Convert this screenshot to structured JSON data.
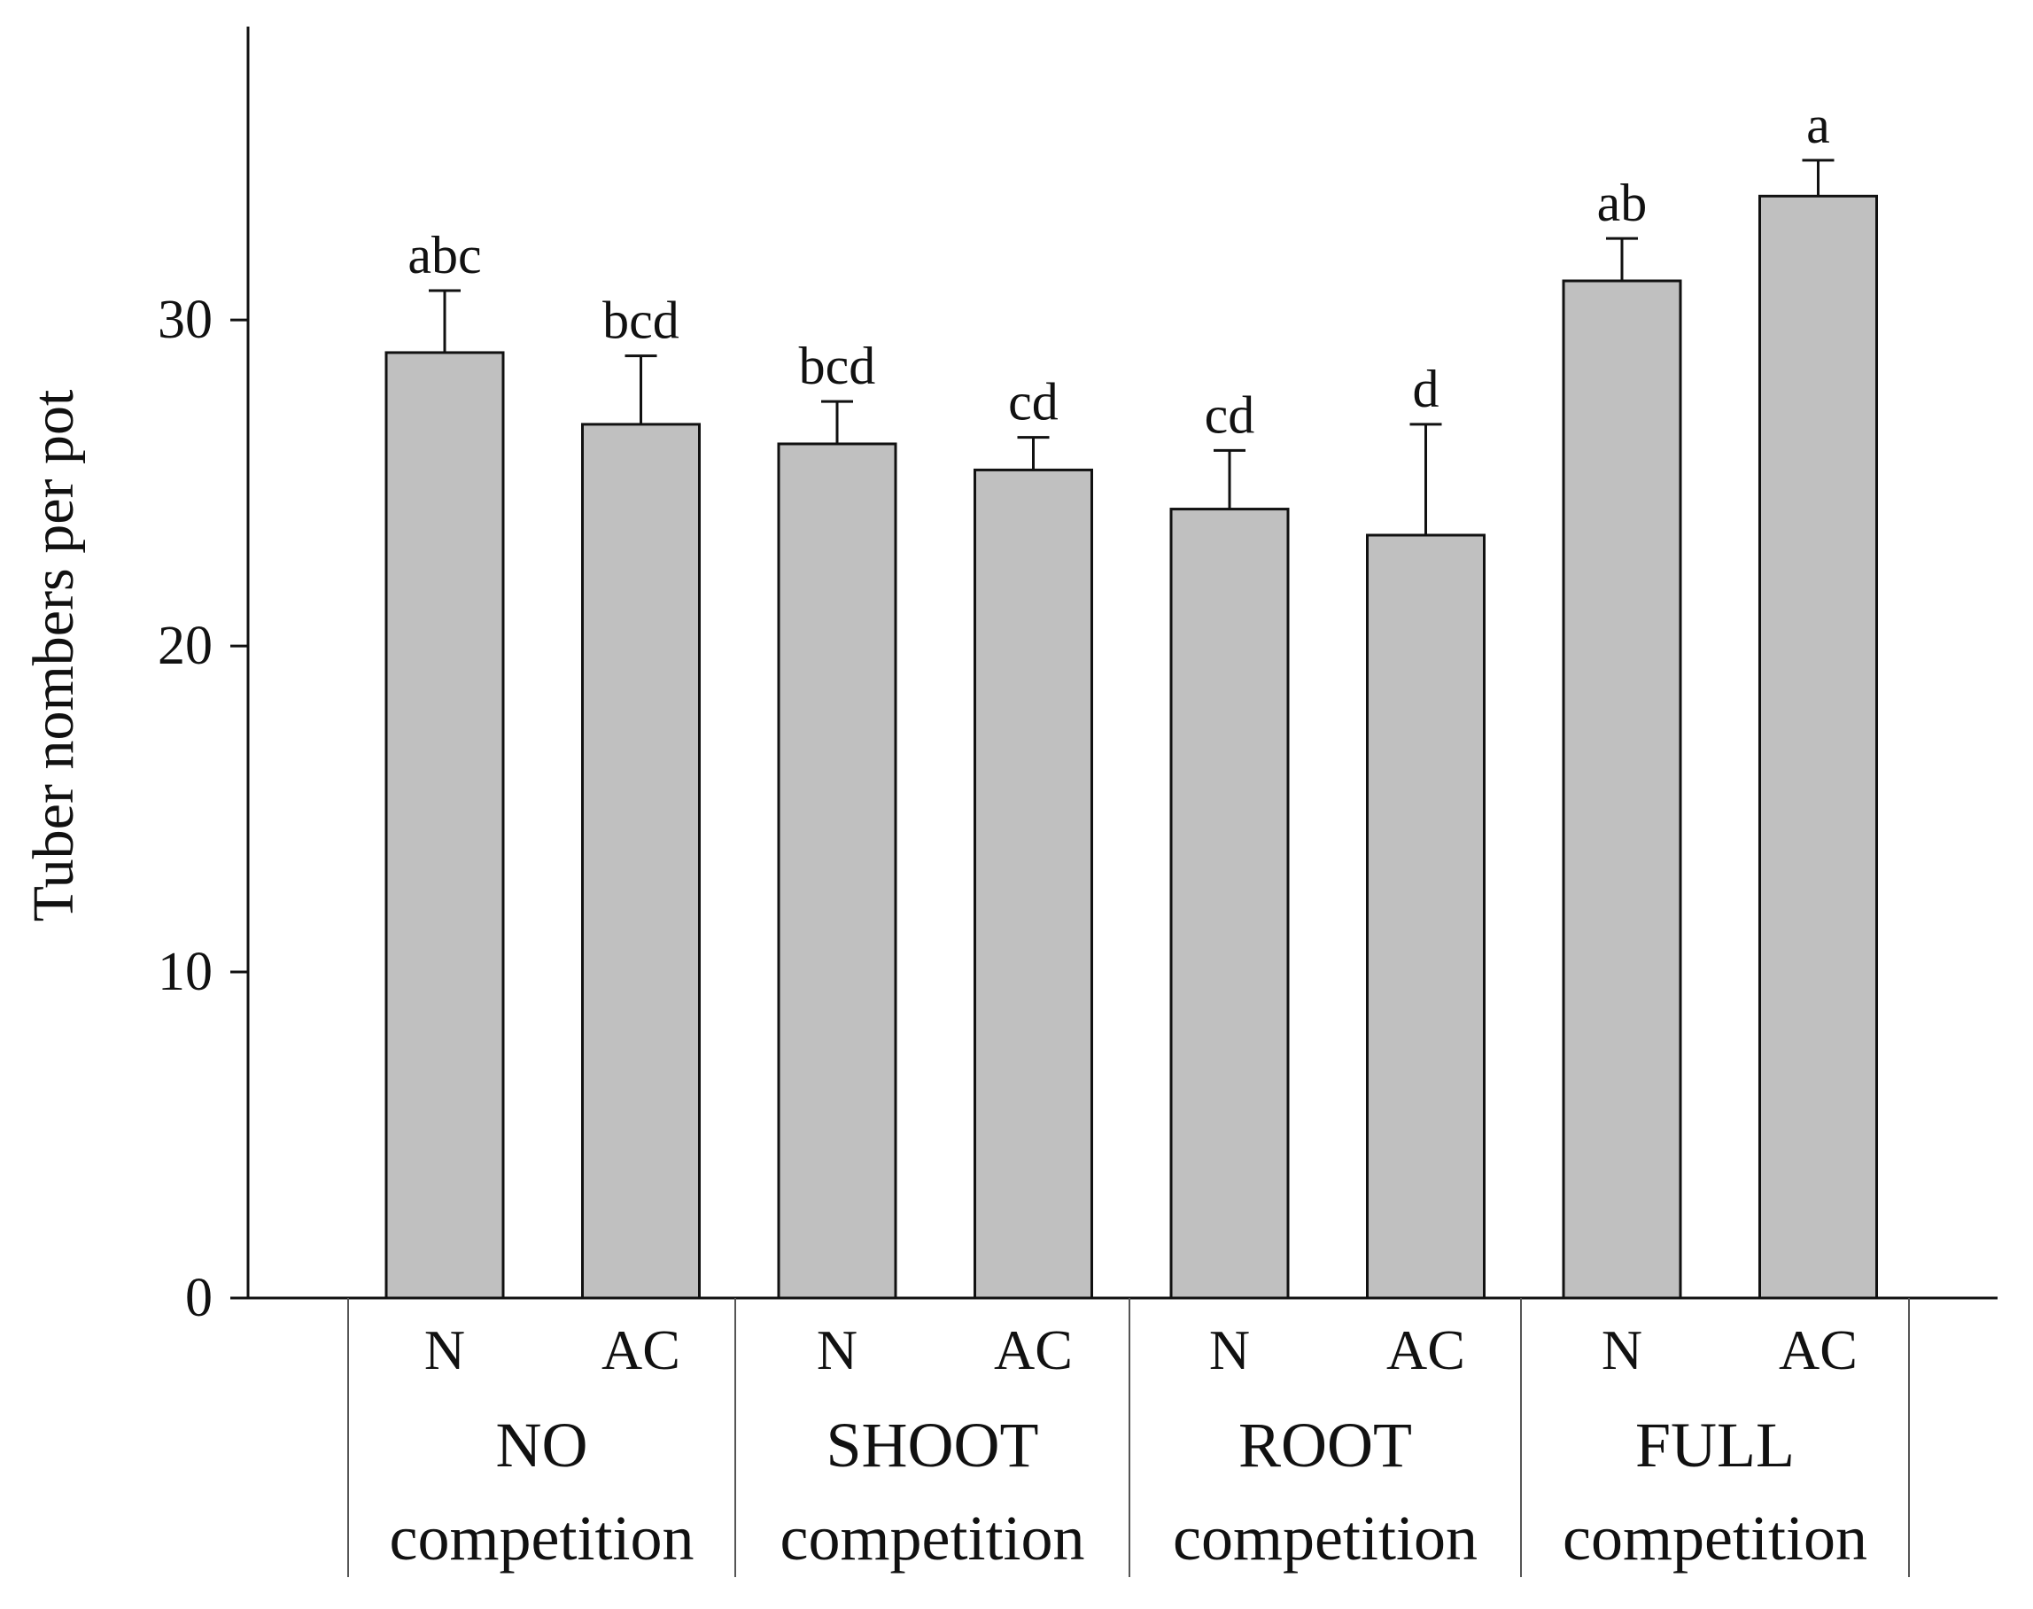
{
  "chart_data": {
    "type": "bar",
    "ylabel": "Tuber nombers per pot",
    "ylim": [
      0,
      39
    ],
    "yticks": [
      0,
      10,
      20,
      30
    ],
    "grid": false,
    "legend": "none",
    "bar_color": "#c0c0c0",
    "outline_color": "#111111",
    "bars": [
      {
        "label": "N",
        "group": 0,
        "value": 29.0,
        "error": 1.9,
        "sig": "abc"
      },
      {
        "label": "AC",
        "group": 0,
        "value": 26.8,
        "error": 2.1,
        "sig": "bcd"
      },
      {
        "label": "N",
        "group": 1,
        "value": 26.2,
        "error": 1.3,
        "sig": "bcd"
      },
      {
        "label": "AC",
        "group": 1,
        "value": 25.4,
        "error": 1.0,
        "sig": "cd"
      },
      {
        "label": "N",
        "group": 2,
        "value": 24.2,
        "error": 1.8,
        "sig": "cd"
      },
      {
        "label": "AC",
        "group": 2,
        "value": 23.4,
        "error": 3.4,
        "sig": "d"
      },
      {
        "label": "N",
        "group": 3,
        "value": 31.2,
        "error": 1.3,
        "sig": "ab"
      },
      {
        "label": "AC",
        "group": 3,
        "value": 33.8,
        "error": 1.1,
        "sig": "a"
      }
    ],
    "groups": [
      {
        "line1": "NO",
        "line2": "competition"
      },
      {
        "line1": "SHOOT",
        "line2": "competition"
      },
      {
        "line1": "ROOT",
        "line2": "competition"
      },
      {
        "line1": "FULL",
        "line2": "competition"
      }
    ]
  }
}
